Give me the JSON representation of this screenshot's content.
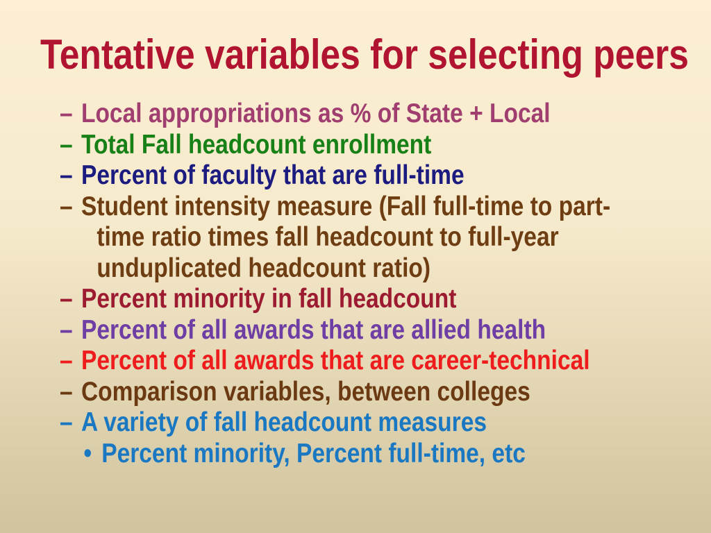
{
  "slide": {
    "title": {
      "text": "Tentative variables for selecting peers",
      "color": "#B01430"
    },
    "background": {
      "top": "#FCEFD3",
      "middle": "#F6EACC",
      "bottom": "#D0C39D"
    },
    "bullets": [
      {
        "marker": "–",
        "color": "#A03E70",
        "lines": [
          "Local appropriations as % of State + Local"
        ]
      },
      {
        "marker": "–",
        "color": "#178017",
        "lines": [
          "Total Fall headcount enrollment"
        ]
      },
      {
        "marker": "–",
        "color": "#1B1B80",
        "lines": [
          "Percent of faculty that are full-time"
        ]
      },
      {
        "marker": "–",
        "color": "#6F3D12",
        "lines": [
          "Student intensity measure (Fall full-time to part-",
          "time ratio times fall headcount to full-year",
          "unduplicated headcount ratio)"
        ]
      },
      {
        "marker": "–",
        "color": "#9C1B31",
        "lines": [
          "Percent minority in fall headcount"
        ]
      },
      {
        "marker": "–",
        "color": "#6E3EA4",
        "lines": [
          "Percent of all awards that are allied health"
        ]
      },
      {
        "marker": "–",
        "color": "#EE1C1C",
        "lines": [
          "Percent of all awards that are career-technical"
        ]
      },
      {
        "marker": "–",
        "color": "#6B3A12",
        "lines": [
          "Comparison variables, between colleges"
        ]
      },
      {
        "marker": "–",
        "color": "#1A78C2",
        "lines": [
          "A variety of fall headcount measures"
        ]
      },
      {
        "marker": "•",
        "color": "#1A78C2",
        "indent": true,
        "lines": [
          "Percent minority, Percent full-time, etc"
        ]
      }
    ]
  }
}
